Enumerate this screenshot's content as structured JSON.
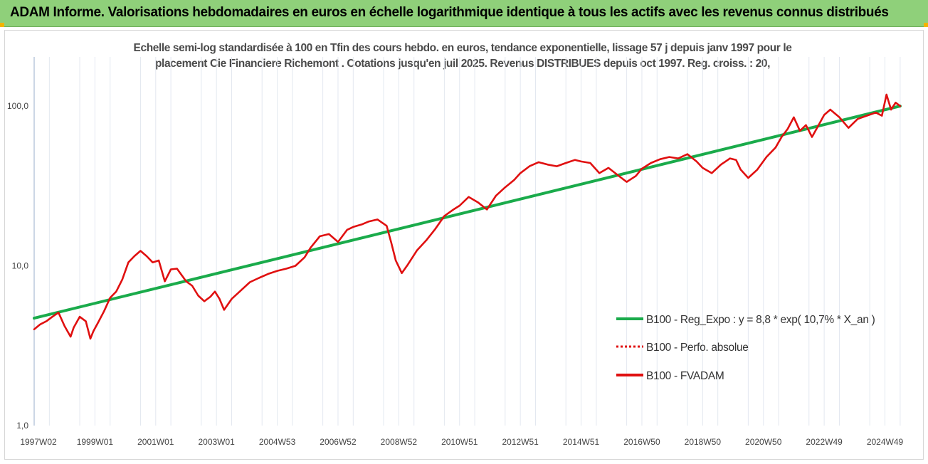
{
  "header": {
    "title": "ADAM Informe. Valorisations hebdomadaires en euros en échelle logarithmique identique à tous les actifs avec les revenus connus distribués",
    "accent": "#8fd07a",
    "corner_color": "#f2b400"
  },
  "chart_data": {
    "type": "line",
    "title_line1": "Echelle semi-log standardisée à 100 en Tfin des cours hebdo. en euros, tendance exponentielle, lissage 57 j depuis janv 1997 pour le",
    "title_line2": "placement Cie Financiere Richemont . Cotations jusqu'en juil 2025. Revenus DISTRIBUES depuis oct 1997. Reg. croiss. : 20,",
    "y_scale": "log",
    "ylim": [
      1,
      100
    ],
    "y_ticks": [
      {
        "value": 100,
        "label": "100,0"
      },
      {
        "value": 10,
        "label": "10,0"
      },
      {
        "value": 1,
        "label": "1,0"
      }
    ],
    "xlim": [
      1997.0,
      2025.55
    ],
    "x_ticks": [
      {
        "value": 1997.0,
        "label": "1997W02"
      },
      {
        "value": 1999.0,
        "label": "1999W01"
      },
      {
        "value": 2001.0,
        "label": "2001W01"
      },
      {
        "value": 2003.0,
        "label": "2003W01"
      },
      {
        "value": 2005.0,
        "label": "2004W53"
      },
      {
        "value": 2007.0,
        "label": "2006W52"
      },
      {
        "value": 2009.0,
        "label": "2008W52"
      },
      {
        "value": 2011.0,
        "label": "2010W51"
      },
      {
        "value": 2013.0,
        "label": "2012W51"
      },
      {
        "value": 2015.0,
        "label": "2014W51"
      },
      {
        "value": 2017.0,
        "label": "2016W50"
      },
      {
        "value": 2019.0,
        "label": "2018W50"
      },
      {
        "value": 2021.0,
        "label": "2020W50"
      },
      {
        "value": 2023.0,
        "label": "2022W49"
      },
      {
        "value": 2025.0,
        "label": "2024W49"
      }
    ],
    "grid": "vertical",
    "legend_position": "bottom-right",
    "series": [
      {
        "name": "B100 - Reg_Expo : y = 8,8 * exp( 10,7% *  X_an )",
        "color": "#1aab4b",
        "style": "solid",
        "x": [
          1997.0,
          2025.5
        ],
        "y": [
          4.7,
          100.0
        ]
      },
      {
        "name": "B100 - Perfo. absolue",
        "color": "#e01010",
        "style": "dotted",
        "x": [],
        "y": []
      },
      {
        "name": "B100 - FVADAM",
        "color": "#e01010",
        "style": "solid",
        "x": [
          1997.0,
          1997.2,
          1997.4,
          1997.6,
          1997.8,
          1998.0,
          1998.2,
          1998.3,
          1998.5,
          1998.7,
          1998.85,
          1998.95,
          1999.1,
          1999.3,
          1999.5,
          1999.7,
          1999.9,
          2000.1,
          2000.3,
          2000.5,
          2000.7,
          2000.9,
          2001.1,
          2001.3,
          2001.5,
          2001.7,
          2001.9,
          2002.0,
          2002.2,
          2002.4,
          2002.6,
          2002.8,
          2002.95,
          2003.1,
          2003.25,
          2003.5,
          2003.8,
          2004.1,
          2004.4,
          2004.7,
          2005.0,
          2005.3,
          2005.6,
          2005.9,
          2006.1,
          2006.4,
          2006.7,
          2007.0,
          2007.3,
          2007.5,
          2007.8,
          2008.0,
          2008.3,
          2008.6,
          2008.75,
          2008.9,
          2009.1,
          2009.3,
          2009.6,
          2009.9,
          2010.2,
          2010.5,
          2010.8,
          2011.0,
          2011.3,
          2011.6,
          2011.9,
          2012.2,
          2012.5,
          2012.8,
          2013.0,
          2013.3,
          2013.6,
          2013.9,
          2014.2,
          2014.5,
          2014.8,
          2015.0,
          2015.3,
          2015.6,
          2015.9,
          2016.2,
          2016.5,
          2016.8,
          2017.0,
          2017.3,
          2017.6,
          2017.9,
          2018.2,
          2018.5,
          2018.8,
          2019.0,
          2019.3,
          2019.6,
          2019.9,
          2020.1,
          2020.25,
          2020.5,
          2020.8,
          2021.1,
          2021.4,
          2021.6,
          2021.8,
          2022.0,
          2022.2,
          2022.4,
          2022.6,
          2022.8,
          2023.0,
          2023.2,
          2023.5,
          2023.8,
          2024.1,
          2024.4,
          2024.7,
          2024.9,
          2025.05,
          2025.2,
          2025.35,
          2025.5
        ],
        "y": [
          4.0,
          4.3,
          4.5,
          4.8,
          5.1,
          4.2,
          3.6,
          4.1,
          4.8,
          4.5,
          3.5,
          3.9,
          4.4,
          5.2,
          6.3,
          6.9,
          8.2,
          10.5,
          11.5,
          12.4,
          11.5,
          10.5,
          10.8,
          8.0,
          9.5,
          9.6,
          8.5,
          8.0,
          7.5,
          6.5,
          6.0,
          6.4,
          6.9,
          6.2,
          5.3,
          6.2,
          7.0,
          7.9,
          8.4,
          8.9,
          9.3,
          9.6,
          10.0,
          11.3,
          13.0,
          15.3,
          15.8,
          14.1,
          16.8,
          17.5,
          18.2,
          18.9,
          19.5,
          17.8,
          14.0,
          10.8,
          9.0,
          10.2,
          12.5,
          14.4,
          17.0,
          20.5,
          22.5,
          23.8,
          27.0,
          25.0,
          22.5,
          27.5,
          31.0,
          34.5,
          38.0,
          42.0,
          44.5,
          43.0,
          42.0,
          44.0,
          46.0,
          45.0,
          44.0,
          38.0,
          41.0,
          37.0,
          33.5,
          36.5,
          40.5,
          44.0,
          46.5,
          48.0,
          47.0,
          50.0,
          45.0,
          41.0,
          38.0,
          43.0,
          47.0,
          46.0,
          40.0,
          35.5,
          40.0,
          48.0,
          55.0,
          64.0,
          72.0,
          85.0,
          70.0,
          76.0,
          64.0,
          75.0,
          88.0,
          95.0,
          85.0,
          73.0,
          83.0,
          87.0,
          91.0,
          87.0,
          118.0,
          95.0,
          105.0,
          100.0
        ]
      }
    ]
  }
}
